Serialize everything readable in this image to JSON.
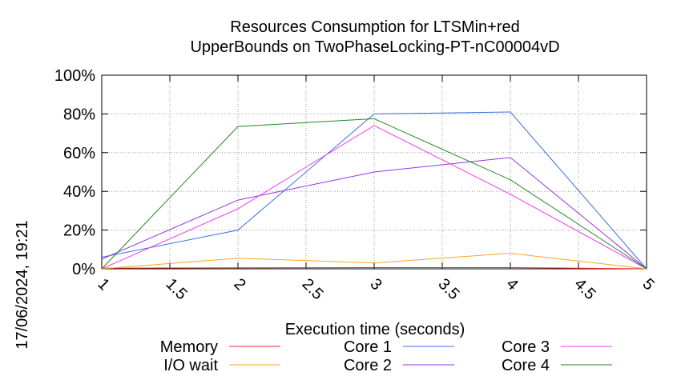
{
  "chart_data": {
    "type": "line",
    "title": [
      "Resources Consumption for LTSMin+red",
      "UpperBounds on TwoPhaseLocking-PT-nC00004vD"
    ],
    "xlabel": "Execution time (seconds)",
    "side_label": "17/06/2024, 19:21",
    "xlim": [
      1,
      5
    ],
    "ylim": [
      0,
      100
    ],
    "x_ticks": [
      {
        "v": 1,
        "label": "1"
      },
      {
        "v": 1.5,
        "label": "1.5"
      },
      {
        "v": 2,
        "label": "2"
      },
      {
        "v": 2.5,
        "label": "2.5"
      },
      {
        "v": 3,
        "label": "3"
      },
      {
        "v": 3.5,
        "label": "3.5"
      },
      {
        "v": 4,
        "label": "4"
      },
      {
        "v": 4.5,
        "label": "4.5"
      },
      {
        "v": 5,
        "label": "5"
      }
    ],
    "y_ticks": [
      {
        "v": 0,
        "label": "0%"
      },
      {
        "v": 20,
        "label": "20%"
      },
      {
        "v": 40,
        "label": "40%"
      },
      {
        "v": 60,
        "label": "60%"
      },
      {
        "v": 80,
        "label": "80%"
      },
      {
        "v": 100,
        "label": "100%"
      }
    ],
    "grid": true,
    "legend_position": "bottom",
    "x": [
      1,
      2,
      3,
      4,
      5
    ],
    "series": [
      {
        "name": "Memory",
        "color": "#e8262a",
        "values": [
          0.3,
          0.5,
          0.6,
          0.6,
          0
        ]
      },
      {
        "name": "I/O wait",
        "color": "#f5a623",
        "values": [
          0,
          5.5,
          3,
          8,
          0
        ]
      },
      {
        "name": "Core 1",
        "color": "#3a6fd8",
        "values": [
          6,
          20,
          80,
          81,
          0
        ]
      },
      {
        "name": "Core 2",
        "color": "#9a32e0",
        "values": [
          5,
          35.5,
          50,
          57.5,
          0
        ]
      },
      {
        "name": "Core 3",
        "color": "#f03cf0",
        "values": [
          0,
          31,
          74,
          38.5,
          0
        ]
      },
      {
        "name": "Core 4",
        "color": "#1f8a1f",
        "values": [
          0,
          73.5,
          77.5,
          46,
          0
        ]
      }
    ]
  }
}
